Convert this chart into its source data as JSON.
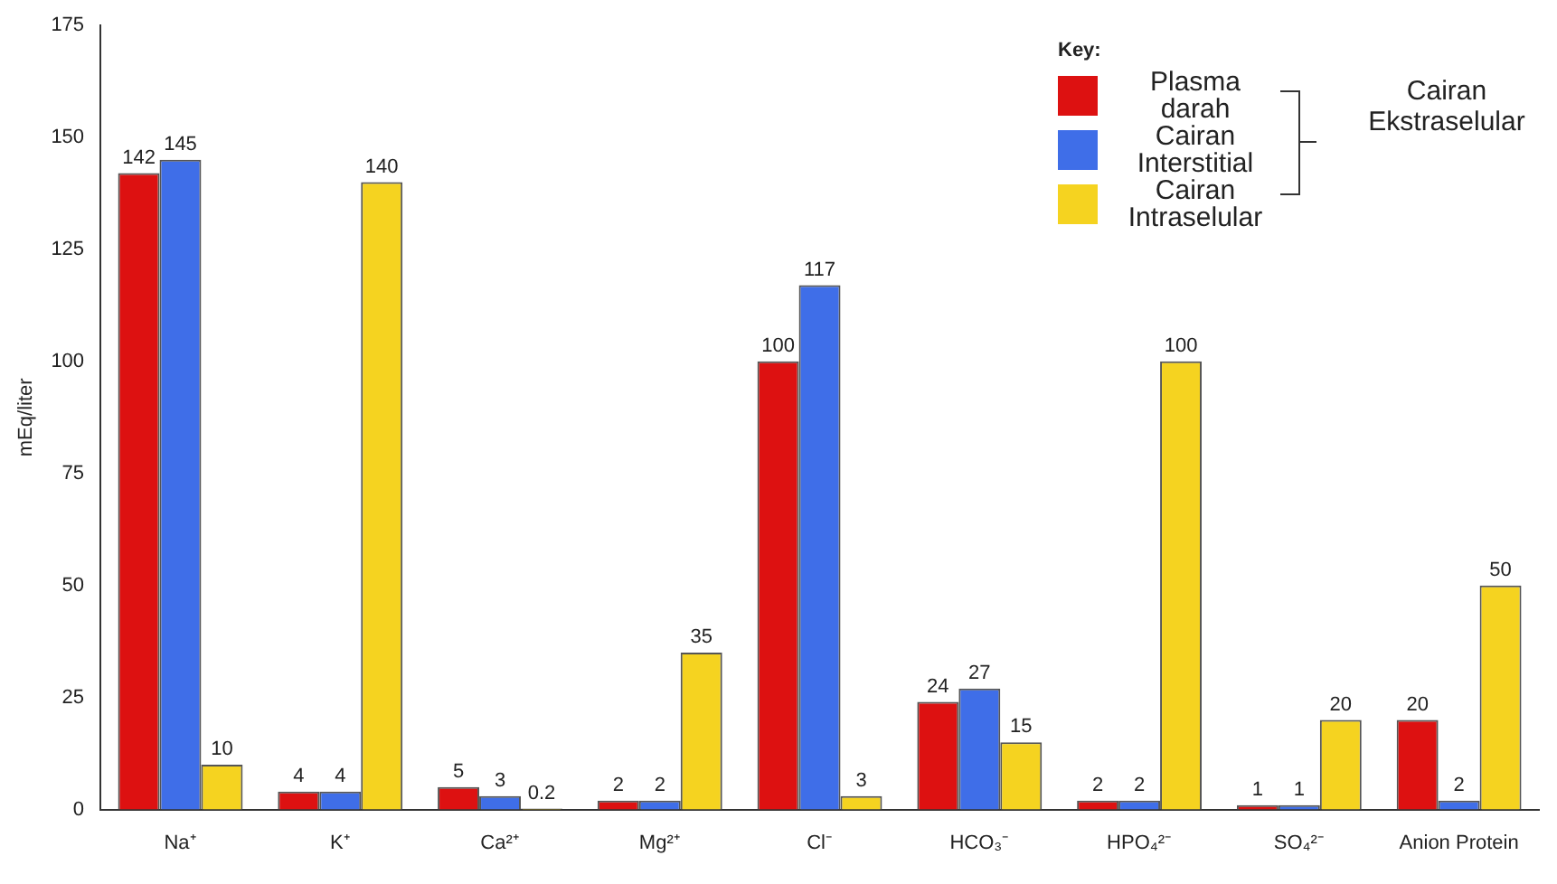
{
  "chart_data": {
    "type": "bar",
    "ylabel": "mEq/liter",
    "legend_title": "Key:",
    "annotations": [
      "Cairan Ekstraselular"
    ],
    "categories": [
      "Na⁺",
      "K⁺",
      "Ca²⁺",
      "Mg²⁺",
      "Cl⁻",
      "HCO₃⁻",
      "HPO₄²⁻",
      "SO₄²⁻",
      "Anion Protein"
    ],
    "series": [
      {
        "name": "Plasma darah",
        "color": "#dd1111",
        "values": [
          142,
          4,
          5,
          2,
          100,
          24,
          2,
          1,
          20
        ]
      },
      {
        "name": "Cairan Interstitial",
        "color": "#3f6ee8",
        "values": [
          145,
          4,
          3,
          2,
          117,
          27,
          2,
          1,
          2
        ]
      },
      {
        "name": "Cairan Intraselular",
        "color": "#f5d320",
        "values": [
          10,
          140,
          0.2,
          35,
          3,
          15,
          100,
          20,
          50
        ]
      }
    ],
    "ylim": [
      0,
      175
    ],
    "yticks": [
      0,
      25,
      50,
      75,
      100,
      125,
      150,
      175
    ],
    "grid": false,
    "legend": "top right",
    "data_labels": true
  }
}
